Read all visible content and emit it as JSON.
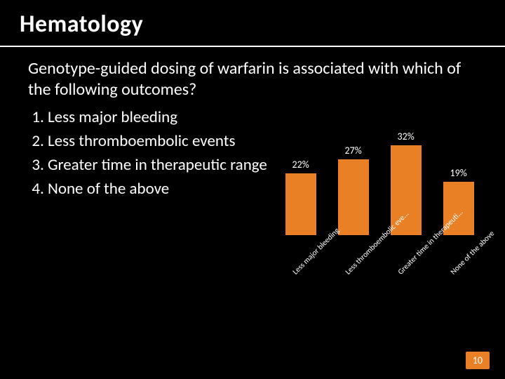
{
  "title": "Hematology",
  "question": "Genotype-guided dosing of warfarin is associated with which of the following outcomes?",
  "options": [
    "Less major bleeding",
    "Less  thromboembolic events",
    "Greater time in therapeutic range",
    "None of the above"
  ],
  "chart": {
    "type": "bar",
    "ylim": [
      0,
      35
    ],
    "bar_color": "#e98025",
    "background_color": "#000000",
    "text_color": "#ffffff",
    "value_fontsize": 14,
    "label_fontsize": 11,
    "label_rotation": -45,
    "series": [
      {
        "label": "Less major bleeding",
        "short": "Less major bleeding",
        "value": 22,
        "display": "22%"
      },
      {
        "label": "Less thromboembolic eve...",
        "short": "Less  thromboembolic eve...",
        "value": 27,
        "display": "27%"
      },
      {
        "label": "Greater time in therapeuti...",
        "short": "Greater time in therapeuti...",
        "value": 32,
        "display": "32%"
      },
      {
        "label": "None of the above",
        "short": "None of the above",
        "value": 19,
        "display": "19%"
      }
    ]
  },
  "page_number": "10",
  "colors": {
    "accent": "#e98025",
    "bg": "#000000",
    "fg": "#ffffff"
  }
}
